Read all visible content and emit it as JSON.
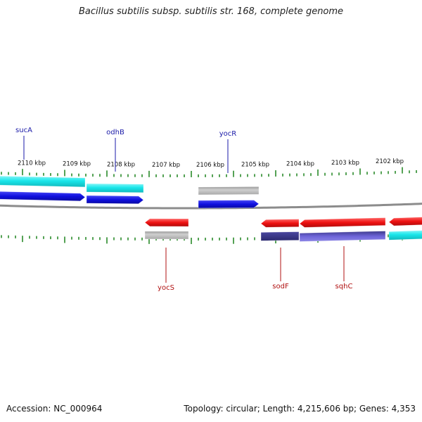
{
  "title": "Bacillus subtilis subsp. subtilis str. 168, complete genome",
  "footer": {
    "accession": "Accession: NC_000964",
    "summary": "Topology: circular; Length: 4,215,606 bp; Genes: 4,353"
  },
  "colors": {
    "backbone": "#8c8c8c",
    "tick": "#2a8a2a",
    "forward_label": "#1a1aa8",
    "reverse_label": "#b01010",
    "blue": "#1818e0",
    "cyan": "#19e6ea",
    "red": "#ee1111",
    "gray": "#b8b8b8",
    "purple": "#6d64d8"
  },
  "ticks": {
    "unit": "kbp",
    "labels": [
      "2110 kbp",
      "2109 kbp",
      "2108 kbp",
      "2107 kbp",
      "2106 kbp",
      "2105 kbp",
      "2104 kbp",
      "2103 kbp",
      "2102 kbp"
    ]
  },
  "genes": [
    {
      "name": "sucA",
      "strand": "forward",
      "labeled": true
    },
    {
      "name": "odhB",
      "strand": "forward",
      "labeled": true
    },
    {
      "name": "yocR",
      "strand": "forward",
      "labeled": true
    },
    {
      "name": "yocS",
      "strand": "reverse",
      "labeled": true
    },
    {
      "name": "sodF",
      "strand": "reverse",
      "labeled": true
    },
    {
      "name": "sqhC",
      "strand": "reverse",
      "labeled": true
    },
    {
      "name": "",
      "strand": "reverse",
      "labeled": false
    }
  ]
}
